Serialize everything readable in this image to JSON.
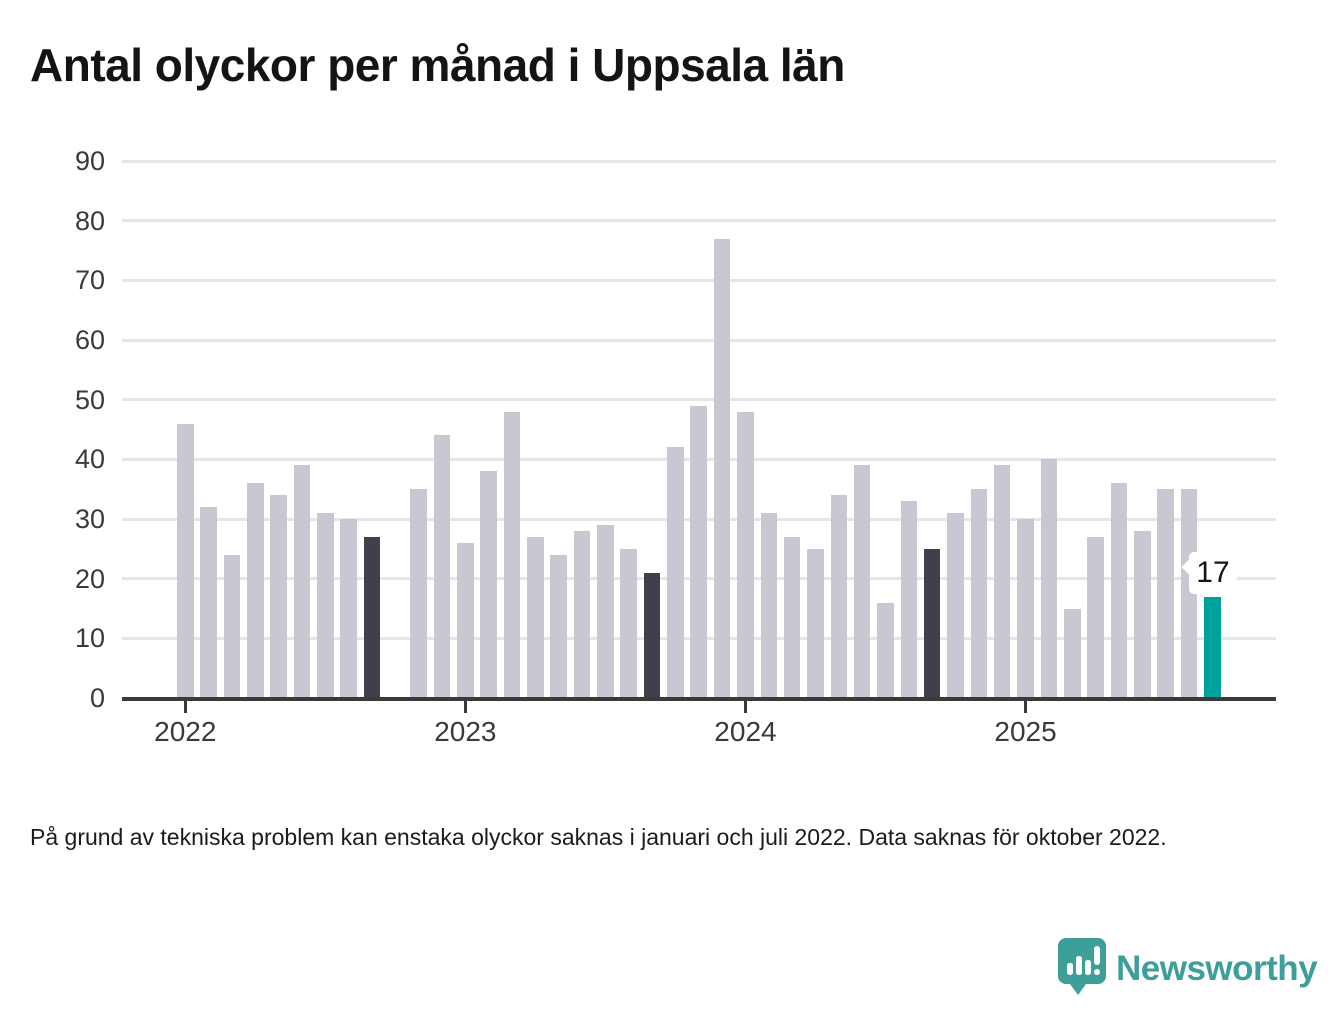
{
  "chart_data": {
    "type": "bar",
    "title": "Antal olyckor per månad i Uppsala län",
    "xlabel": "",
    "ylabel": "",
    "ylim": [
      0,
      90
    ],
    "yticks": [
      0,
      10,
      20,
      30,
      40,
      50,
      60,
      70,
      80,
      90
    ],
    "grid": "horizontal",
    "legend": "none",
    "months": [
      "2022-01",
      "2022-02",
      "2022-03",
      "2022-04",
      "2022-05",
      "2022-06",
      "2022-07",
      "2022-08",
      "2022-09",
      "2022-10",
      "2022-11",
      "2022-12",
      "2023-01",
      "2023-02",
      "2023-03",
      "2023-04",
      "2023-05",
      "2023-06",
      "2023-07",
      "2023-08",
      "2023-09",
      "2023-10",
      "2023-11",
      "2023-12",
      "2024-01",
      "2024-02",
      "2024-03",
      "2024-04",
      "2024-05",
      "2024-06",
      "2024-07",
      "2024-08",
      "2024-09",
      "2024-10",
      "2024-11",
      "2024-12",
      "2025-01",
      "2025-02",
      "2025-03",
      "2025-04",
      "2025-05",
      "2025-06",
      "2025-07",
      "2025-08",
      "2025-09"
    ],
    "values": [
      46,
      32,
      24,
      36,
      34,
      39,
      31,
      30,
      27,
      null,
      35,
      44,
      26,
      38,
      48,
      27,
      24,
      28,
      29,
      25,
      21,
      42,
      49,
      77,
      48,
      31,
      27,
      25,
      34,
      39,
      16,
      33,
      25,
      31,
      35,
      39,
      30,
      40,
      15,
      27,
      36,
      28,
      35,
      35,
      17
    ],
    "bar_roles": {
      "dark_months": [
        "2022-09",
        "2023-09",
        "2024-09"
      ],
      "current_month": "2025-09",
      "missing_months": [
        "2022-10"
      ]
    },
    "x_tick_labels": [
      "2022",
      "2023",
      "2024",
      "2025"
    ],
    "annotation": {
      "text": "17",
      "month": "2025-09"
    },
    "colors": {
      "bar_default": "#c9c7d2",
      "bar_dark": "#413f4c",
      "bar_current": "#00a39b",
      "gridline": "#e6e5e9",
      "axis": "#3a3a3a",
      "tick_text": "#3a3a3a",
      "title_text": "#141414"
    }
  },
  "footnote": "På grund av tekniska problem kan enstaka olyckor saknas i januari och juli 2022. Data saknas för oktober 2022.",
  "logo": {
    "wordmark": "Newsworthy",
    "icon": "newsworthy-bubble-bar-chart-icon",
    "color": "#3e9e99"
  }
}
